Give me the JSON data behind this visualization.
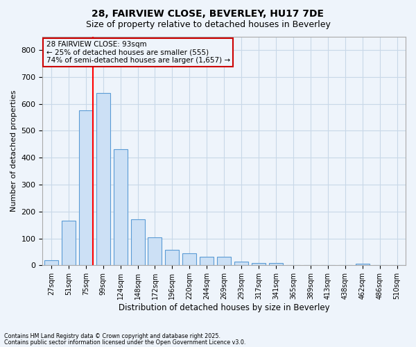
{
  "title1": "28, FAIRVIEW CLOSE, BEVERLEY, HU17 7DE",
  "title2": "Size of property relative to detached houses in Beverley",
  "xlabel": "Distribution of detached houses by size in Beverley",
  "ylabel": "Number of detached properties",
  "bin_labels": [
    "27sqm",
    "51sqm",
    "75sqm",
    "99sqm",
    "124sqm",
    "148sqm",
    "172sqm",
    "196sqm",
    "220sqm",
    "244sqm",
    "269sqm",
    "293sqm",
    "317sqm",
    "341sqm",
    "365sqm",
    "389sqm",
    "413sqm",
    "438sqm",
    "462sqm",
    "486sqm",
    "510sqm"
  ],
  "bar_values": [
    20,
    165,
    575,
    640,
    430,
    170,
    105,
    57,
    45,
    33,
    33,
    14,
    8,
    8,
    2,
    0,
    0,
    0,
    5,
    0,
    0
  ],
  "bar_color": "#cce0f5",
  "bar_edge_color": "#5b9bd5",
  "grid_color": "#c8d8e8",
  "background_color": "#eef4fb",
  "red_line_bin_index": 2,
  "annotation_line1": "28 FAIRVIEW CLOSE: 93sqm",
  "annotation_line2": "← 25% of detached houses are smaller (555)",
  "annotation_line3": "74% of semi-detached houses are larger (1,657) →",
  "annotation_box_color": "#cc0000",
  "ylim": [
    0,
    850
  ],
  "yticks": [
    0,
    100,
    200,
    300,
    400,
    500,
    600,
    700,
    800
  ],
  "footnote1": "Contains HM Land Registry data © Crown copyright and database right 2025.",
  "footnote2": "Contains public sector information licensed under the Open Government Licence v3.0."
}
